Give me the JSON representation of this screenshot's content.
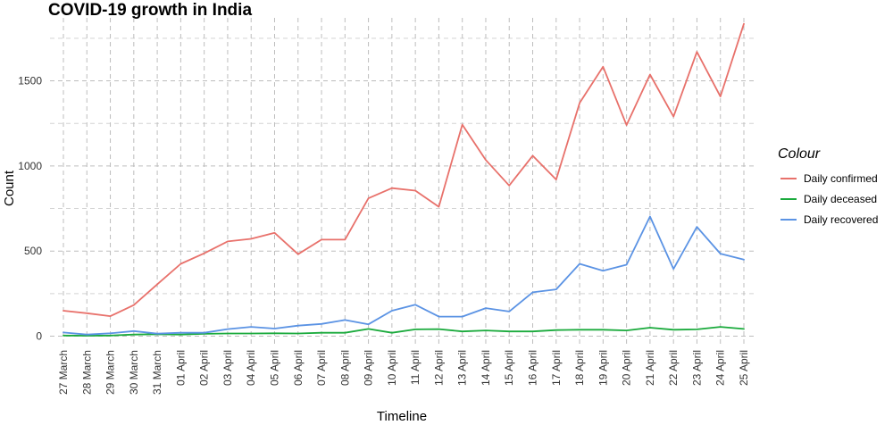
{
  "chart_data": {
    "type": "line",
    "title": "COVID-19 growth in India",
    "xlabel": "Timeline",
    "ylabel": "Count",
    "categories": [
      "27 March",
      "28 March",
      "29 March",
      "30 March",
      "31 March",
      "01 April",
      "02 April",
      "03 April",
      "04 April",
      "05 April",
      "06 April",
      "07 April",
      "08 April",
      "09 April",
      "10 April",
      "11 April",
      "12 April",
      "13 April",
      "14 April",
      "15 April",
      "16 April",
      "17 April",
      "18 April",
      "19 April",
      "20 April",
      "21 April",
      "22 April",
      "23 April",
      "24 April",
      "25 April"
    ],
    "ylim": [
      -60,
      1870
    ],
    "yticks": [
      0,
      500,
      1000,
      1500
    ],
    "ytick_labels": [
      "0",
      "500",
      "1000",
      "1500"
    ],
    "grid": true,
    "legend": {
      "title": "Colour",
      "position": "right"
    },
    "series": [
      {
        "name": "Daily confirmed",
        "color": "#e8716b",
        "values": [
          150,
          135,
          118,
          183,
          305,
          425,
          487,
          557,
          572,
          607,
          482,
          567,
          567,
          810,
          870,
          855,
          760,
          1243,
          1035,
          885,
          1060,
          920,
          1370,
          1583,
          1240,
          1537,
          1290,
          1670,
          1408,
          1835
        ]
      },
      {
        "name": "Daily deceased",
        "color": "#1aaa3c",
        "values": [
          4,
          3,
          4,
          10,
          12,
          10,
          14,
          16,
          16,
          17,
          16,
          20,
          20,
          43,
          20,
          40,
          42,
          28,
          34,
          28,
          28,
          36,
          38,
          38,
          34,
          50,
          38,
          40,
          55,
          43
        ]
      },
      {
        "name": "Daily recovered",
        "color": "#5b93e4",
        "values": [
          22,
          10,
          17,
          30,
          15,
          20,
          20,
          42,
          55,
          45,
          62,
          72,
          95,
          70,
          150,
          185,
          115,
          115,
          165,
          145,
          258,
          275,
          425,
          385,
          420,
          703,
          395,
          642,
          485,
          450
        ]
      }
    ]
  }
}
